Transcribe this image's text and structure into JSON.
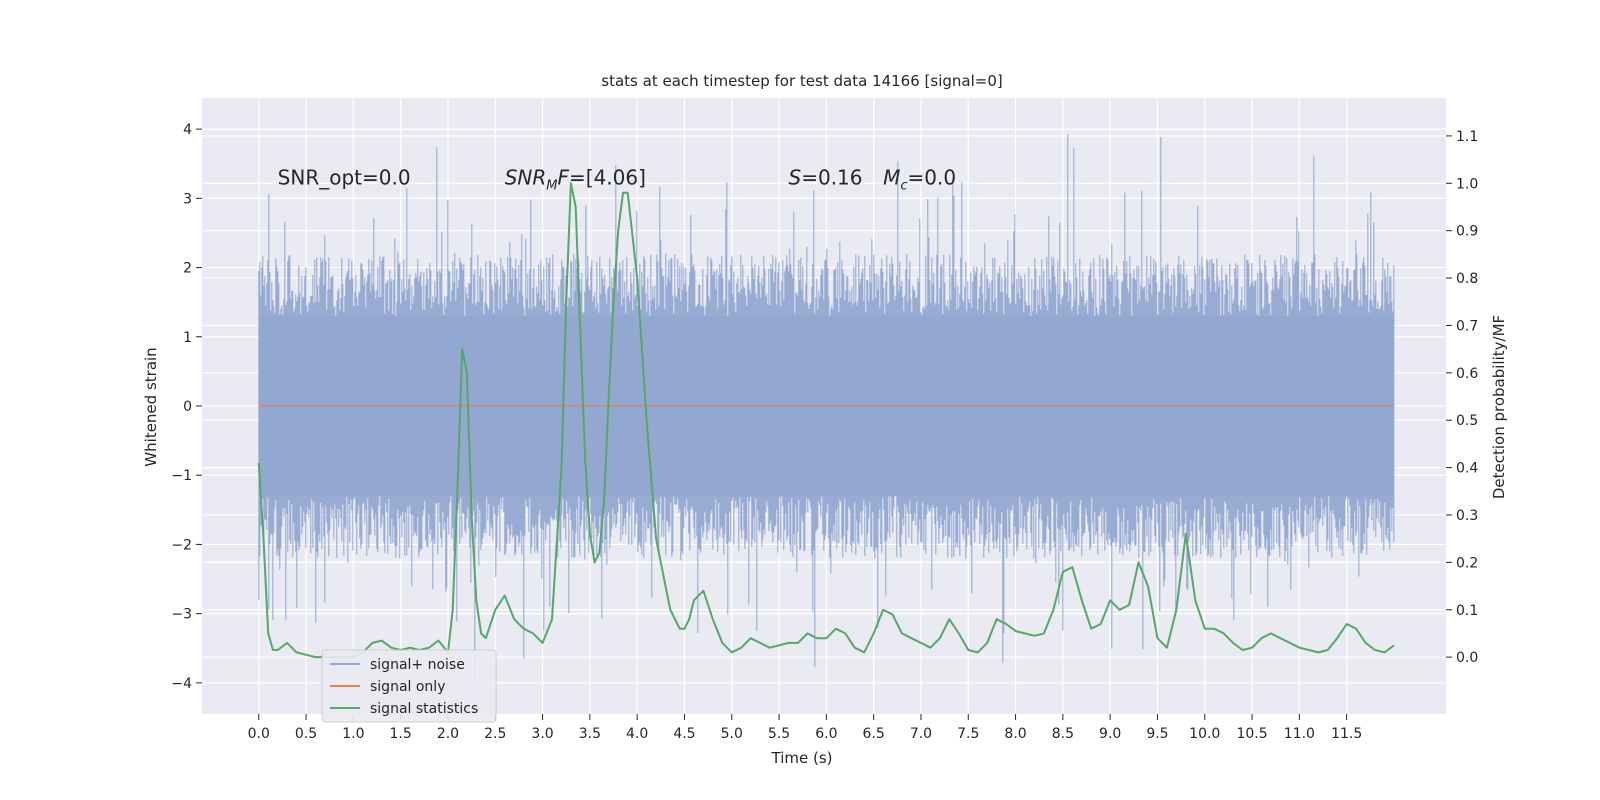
{
  "chart_data": {
    "type": "line",
    "title": "stats at each timestep for test data 14166 [signal=0]",
    "xlabel": "Time (s)",
    "ylabel": "Whitened strain",
    "y2label": "Detection probability/MF",
    "xlim": [
      -0.6,
      12.55
    ],
    "ylim": [
      -4.45,
      4.45
    ],
    "y2lim": [
      -0.12,
      1.18
    ],
    "x_ticks": [
      0.0,
      0.5,
      1.0,
      1.5,
      2.0,
      2.5,
      3.0,
      3.5,
      4.0,
      4.5,
      5.0,
      5.5,
      6.0,
      6.5,
      7.0,
      7.5,
      8.0,
      8.5,
      9.0,
      9.5,
      10.0,
      10.5,
      11.0,
      11.5
    ],
    "x_tick_labels": [
      "0.0",
      "0.5",
      "1.0",
      "1.5",
      "2.0",
      "2.5",
      "3.0",
      "3.5",
      "4.0",
      "4.5",
      "5.0",
      "5.5",
      "6.0",
      "6.5",
      "7.0",
      "7.5",
      "8.0",
      "8.5",
      "9.0",
      "9.5",
      "10.0",
      "10.5",
      "11.0",
      "11.5"
    ],
    "y_ticks": [
      -4,
      -3,
      -2,
      -1,
      0,
      1,
      2,
      3,
      4
    ],
    "y_tick_labels": [
      "−4",
      "−3",
      "−2",
      "−1",
      "0",
      "1",
      "2",
      "3",
      "4"
    ],
    "y2_ticks": [
      0.0,
      0.1,
      0.2,
      0.3,
      0.4,
      0.5,
      0.6,
      0.7,
      0.8,
      0.9,
      1.0,
      1.1
    ],
    "y2_tick_labels": [
      "0.0",
      "0.1",
      "0.2",
      "0.3",
      "0.4",
      "0.5",
      "0.6",
      "0.7",
      "0.8",
      "0.9",
      "1.0",
      "1.1"
    ],
    "grid": true,
    "legend_position": "lower-left",
    "annotations": [
      {
        "text": "SNR_opt=0.0",
        "x": 0.2,
        "y": 3.2,
        "italic": false
      },
      {
        "text": "SNR",
        "sub": "M",
        "suffix": "F=[4.06]",
        "x": 2.6,
        "y": 3.2,
        "italic": true
      },
      {
        "text": "S=0.16",
        "x": 5.6,
        "y": 3.2,
        "italic": false,
        "italic_prefix": "S"
      },
      {
        "text": "M",
        "sub": "c",
        "suffix": "=0.0",
        "x": 6.6,
        "y": 3.2,
        "italic": true
      }
    ],
    "series": [
      {
        "name": "signal+ noise",
        "color": "#92a8d1",
        "axis": "left",
        "noise_envelope": {
          "x_start": 0.0,
          "x_end": 12.0,
          "typical_max": 2.2,
          "typical_min": -2.2,
          "peak_max": 4.05,
          "peak_min": -4.05,
          "dense_band": 1.3
        }
      },
      {
        "name": "signal only",
        "color": "#dd8452",
        "axis": "left",
        "x": [
          0.0,
          12.0
        ],
        "values": [
          0.0,
          0.0
        ]
      },
      {
        "name": "signal statistics",
        "color": "#55a868",
        "axis": "right",
        "x": [
          0.0,
          0.05,
          0.1,
          0.15,
          0.2,
          0.3,
          0.4,
          0.5,
          0.6,
          0.7,
          0.8,
          0.9,
          1.0,
          1.1,
          1.2,
          1.3,
          1.4,
          1.5,
          1.6,
          1.7,
          1.8,
          1.9,
          2.0,
          2.05,
          2.1,
          2.15,
          2.2,
          2.25,
          2.3,
          2.35,
          2.4,
          2.5,
          2.6,
          2.7,
          2.8,
          2.9,
          3.0,
          3.1,
          3.2,
          3.25,
          3.3,
          3.35,
          3.4,
          3.45,
          3.5,
          3.55,
          3.6,
          3.65,
          3.7,
          3.75,
          3.8,
          3.85,
          3.9,
          4.0,
          4.1,
          4.2,
          4.3,
          4.35,
          4.4,
          4.45,
          4.5,
          4.55,
          4.6,
          4.7,
          4.8,
          4.9,
          5.0,
          5.1,
          5.2,
          5.3,
          5.4,
          5.5,
          5.6,
          5.7,
          5.8,
          5.9,
          6.0,
          6.1,
          6.2,
          6.3,
          6.4,
          6.5,
          6.6,
          6.7,
          6.8,
          6.9,
          7.0,
          7.1,
          7.2,
          7.3,
          7.4,
          7.5,
          7.6,
          7.7,
          7.8,
          7.9,
          8.0,
          8.1,
          8.2,
          8.3,
          8.4,
          8.5,
          8.6,
          8.7,
          8.8,
          8.9,
          9.0,
          9.1,
          9.2,
          9.3,
          9.4,
          9.5,
          9.6,
          9.7,
          9.8,
          9.9,
          10.0,
          10.1,
          10.2,
          10.3,
          10.4,
          10.5,
          10.6,
          10.7,
          10.8,
          10.9,
          11.0,
          11.1,
          11.2,
          11.3,
          11.4,
          11.5,
          11.6,
          11.7,
          11.8,
          11.9,
          12.0
        ],
        "values": [
          0.41,
          0.25,
          0.05,
          0.015,
          0.015,
          0.03,
          0.01,
          0.005,
          0.0,
          0.0,
          0.0,
          0.0,
          0.0,
          0.01,
          0.03,
          0.035,
          0.02,
          0.015,
          0.02,
          0.015,
          0.02,
          0.035,
          0.01,
          0.1,
          0.35,
          0.65,
          0.6,
          0.3,
          0.12,
          0.05,
          0.04,
          0.1,
          0.13,
          0.08,
          0.06,
          0.05,
          0.03,
          0.08,
          0.4,
          0.75,
          1.0,
          0.95,
          0.68,
          0.42,
          0.26,
          0.2,
          0.22,
          0.33,
          0.55,
          0.75,
          0.9,
          0.98,
          0.98,
          0.8,
          0.5,
          0.25,
          0.15,
          0.1,
          0.08,
          0.06,
          0.06,
          0.08,
          0.12,
          0.14,
          0.08,
          0.03,
          0.01,
          0.02,
          0.04,
          0.03,
          0.02,
          0.025,
          0.03,
          0.03,
          0.05,
          0.04,
          0.04,
          0.06,
          0.05,
          0.02,
          0.01,
          0.05,
          0.1,
          0.09,
          0.05,
          0.04,
          0.03,
          0.02,
          0.04,
          0.08,
          0.05,
          0.015,
          0.01,
          0.03,
          0.08,
          0.07,
          0.055,
          0.05,
          0.045,
          0.05,
          0.1,
          0.18,
          0.19,
          0.12,
          0.06,
          0.07,
          0.12,
          0.1,
          0.11,
          0.2,
          0.15,
          0.04,
          0.02,
          0.1,
          0.26,
          0.12,
          0.06,
          0.06,
          0.05,
          0.03,
          0.015,
          0.02,
          0.04,
          0.05,
          0.04,
          0.03,
          0.02,
          0.015,
          0.01,
          0.015,
          0.04,
          0.07,
          0.06,
          0.03,
          0.015,
          0.01,
          0.025
        ]
      }
    ]
  }
}
